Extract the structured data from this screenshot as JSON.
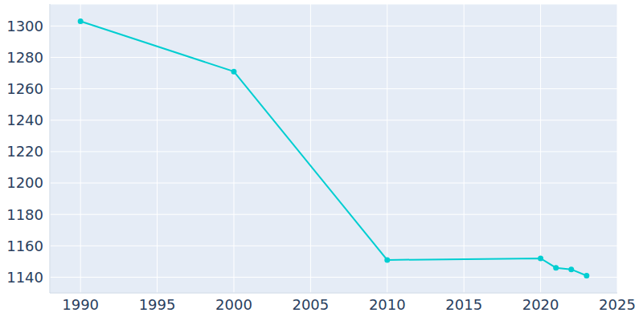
{
  "chart_data": {
    "type": "line",
    "x": [
      1990,
      2000,
      2010,
      2020,
      2021,
      2022,
      2023
    ],
    "values": [
      1303,
      1271,
      1151,
      1152,
      1146,
      1145,
      1141
    ],
    "color": "#00ced1",
    "marker": "circle",
    "xlim": [
      1988,
      2025
    ],
    "xticks": [
      1990,
      1995,
      2000,
      2005,
      2010,
      2015,
      2020,
      2025
    ],
    "ylim": [
      1130,
      1314
    ],
    "yticks": [
      1140,
      1160,
      1180,
      1200,
      1220,
      1240,
      1260,
      1280,
      1300
    ],
    "grid": true
  }
}
